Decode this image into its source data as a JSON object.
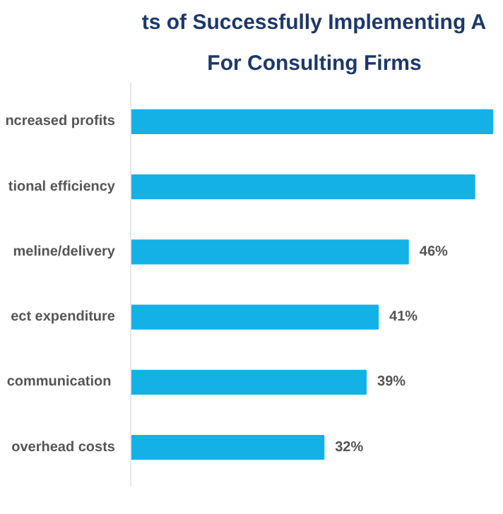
{
  "chart_data": {
    "type": "bar",
    "orientation": "horizontal",
    "title": "ts of Successfully Implementing A",
    "subtitle": "For Consulting Firms",
    "categories": [
      "ncreased profits",
      "tional efficiency",
      "meline/delivery",
      "ect expenditure",
      " communication",
      "overhead costs"
    ],
    "values": [
      60,
      57,
      46,
      41,
      39,
      32
    ],
    "value_labels": [
      null,
      null,
      "46%",
      "41%",
      "39%",
      "32%"
    ],
    "color": "#14b1e7",
    "grid": false
  }
}
